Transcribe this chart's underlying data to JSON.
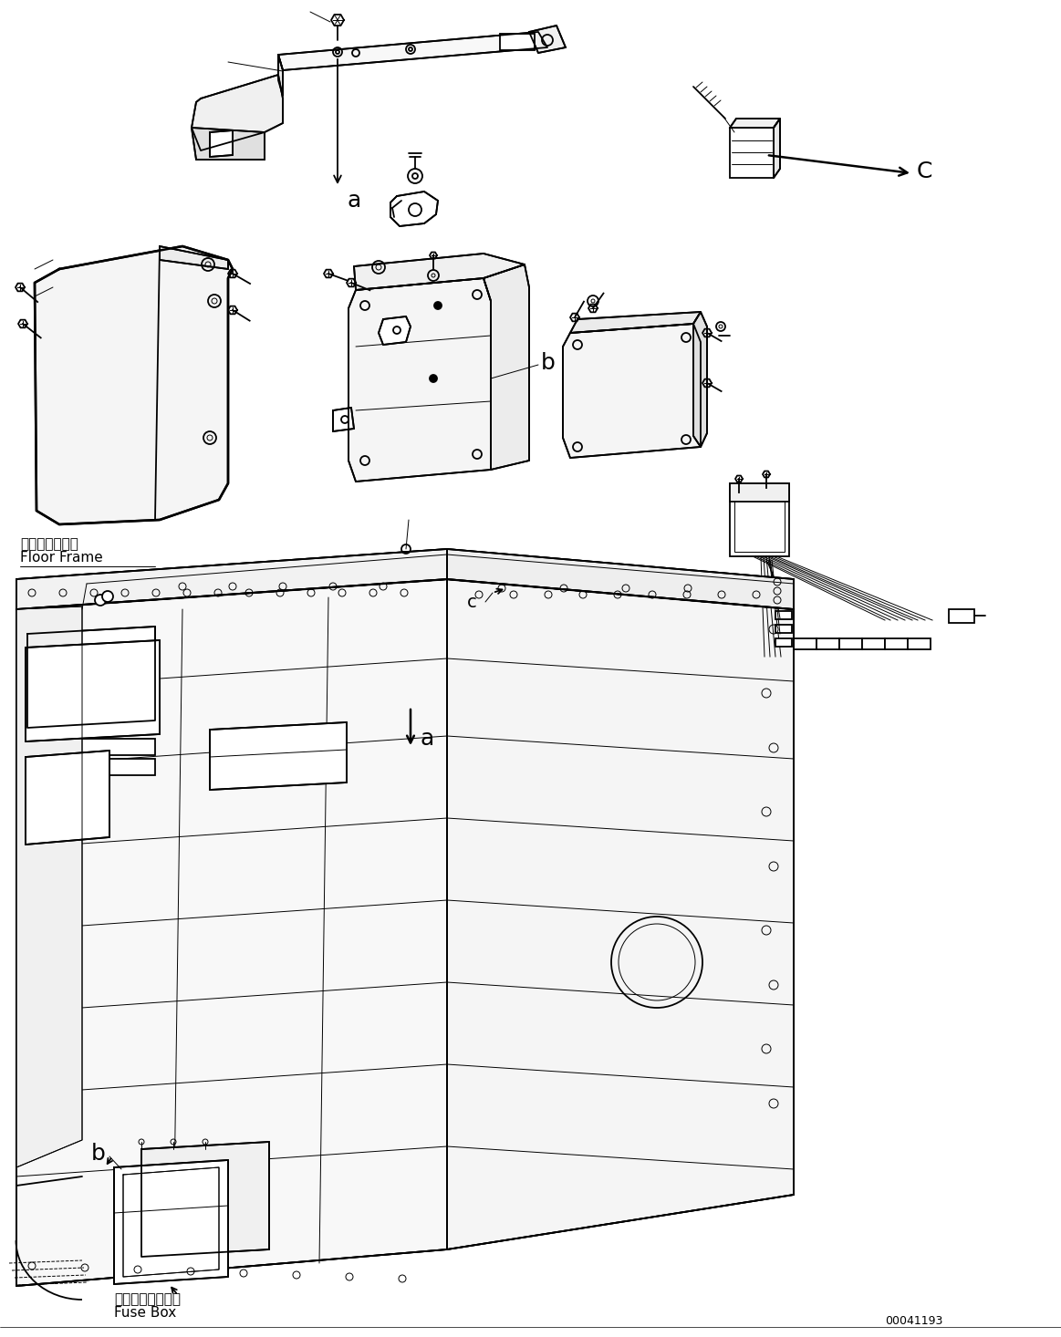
{
  "figure_width": 11.63,
  "figure_height": 14.66,
  "dpi": 100,
  "bg_color": "#ffffff",
  "line_color": "#000000",
  "part_id": "00041193",
  "labels": {
    "floor_frame_jp": "フロアフレーム",
    "floor_frame_en": "Floor Frame",
    "fuse_box_jp": "フューズボックス",
    "fuse_box_en": "Fuse Box",
    "label_a_top": "a",
    "label_b_mid": "b",
    "label_c_top": "C",
    "label_a_bot": "a",
    "label_b_bot": "b",
    "label_c_bot": "c"
  },
  "font_size_label_large": 18,
  "font_size_label_mid": 14,
  "font_size_jp": 11,
  "font_size_en": 11,
  "font_size_partid": 9,
  "lw": 1.3,
  "tlw": 0.7
}
